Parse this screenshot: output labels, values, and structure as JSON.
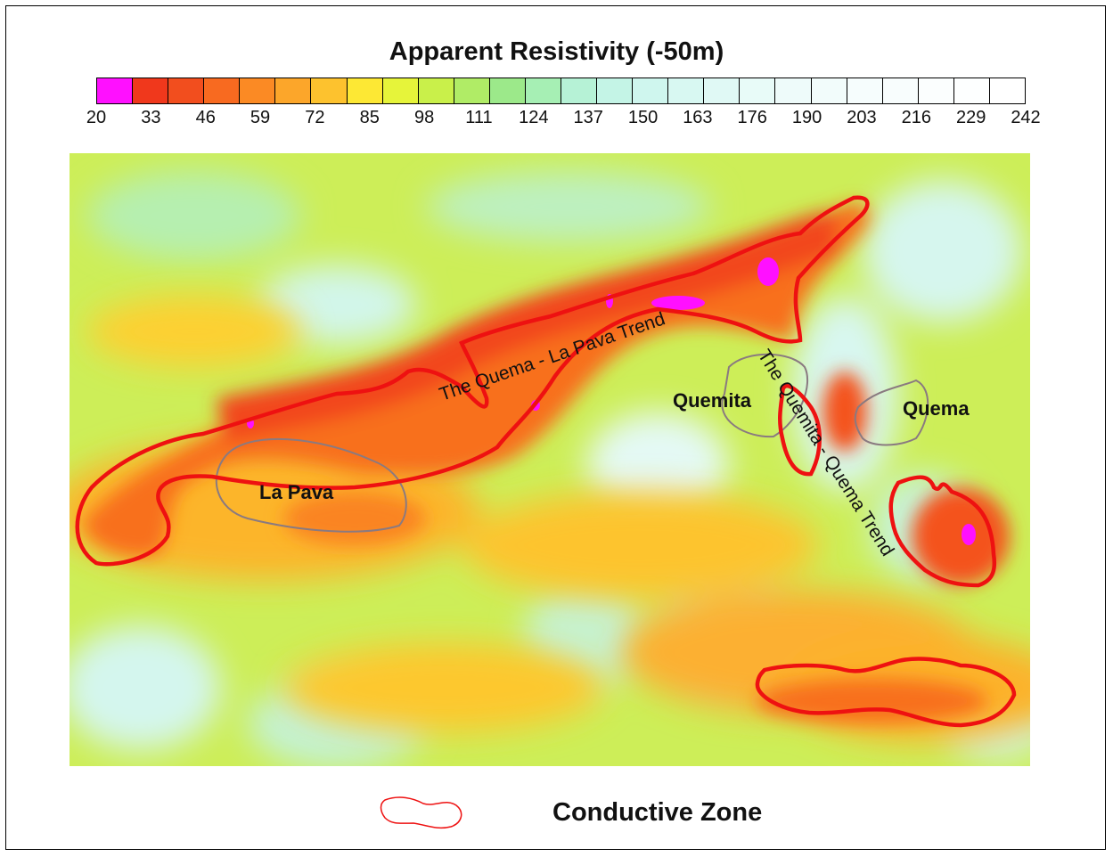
{
  "title": "Apparent Resistivity (-50m)",
  "colorbar": {
    "colors": [
      "#ff10ff",
      "#f0381c",
      "#f24e1e",
      "#f86a20",
      "#fb8a24",
      "#fca62a",
      "#fdc22e",
      "#fde834",
      "#e6f43a",
      "#c9f04a",
      "#b0ec66",
      "#9ce98a",
      "#a6efb4",
      "#b6f2d6",
      "#c4f4e6",
      "#cff6ee",
      "#d8f8f2",
      "#e0f9f5",
      "#e8fbf8",
      "#eefbfa",
      "#f2fcfb",
      "#f6fdfd",
      "#f8fdfd",
      "#fbfefe",
      "#fdffff",
      "#ffffff"
    ],
    "ticks": [
      "20",
      "33",
      "46",
      "59",
      "72",
      "85",
      "98",
      "111",
      "124",
      "137",
      "150",
      "163",
      "176",
      "190",
      "203",
      "216",
      "229",
      "242"
    ]
  },
  "map": {
    "labels": {
      "la_pava": "La Pava",
      "quemita": "Quemita",
      "quema": "Quema",
      "trend_1": "The Quema - La Pava Trend",
      "trend_2": "The Quemita - Quema Trend"
    },
    "conductive_zone_color": "#ee1111",
    "deposit_outline_color": "#8a7a80"
  },
  "legend": {
    "label": "Conductive Zone",
    "color": "#ee1111"
  }
}
